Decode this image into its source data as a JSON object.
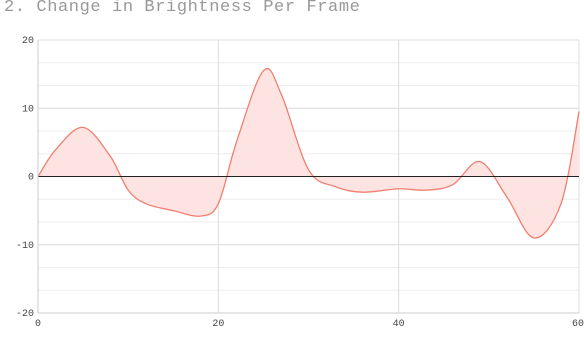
{
  "chart_data": {
    "type": "area",
    "title": "2. Change in Brightness Per Frame",
    "xlabel": "",
    "ylabel": "",
    "xlim": [
      0,
      60
    ],
    "ylim": [
      -20,
      20
    ],
    "x_ticks": [
      0,
      20,
      40,
      60
    ],
    "y_ticks": [
      -20,
      -10,
      0,
      10,
      20
    ],
    "grid": true,
    "series": [
      {
        "x": [
          0,
          2,
          5,
          8,
          10,
          12,
          15,
          18,
          20,
          22,
          25,
          27,
          30,
          33,
          36,
          40,
          43,
          46,
          49,
          52,
          55,
          58,
          60
        ],
        "values": [
          0,
          4,
          7.2,
          3,
          -2,
          -4,
          -5,
          -5.8,
          -4,
          5,
          15.5,
          12,
          1,
          -1.5,
          -2.3,
          -1.8,
          -2,
          -1.2,
          2.2,
          -3,
          -9,
          -4,
          9.5
        ],
        "color": "#f08070",
        "fill": "#fde3e1"
      }
    ]
  }
}
